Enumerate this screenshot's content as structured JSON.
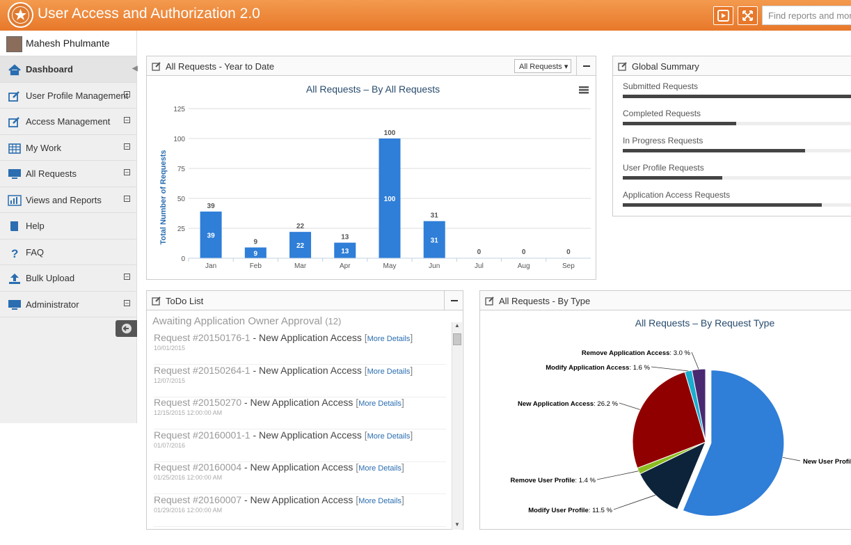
{
  "app": {
    "title": "User Access and Authorization 2.0",
    "search_placeholder": "Find reports and more"
  },
  "user": {
    "name": "Mahesh Phulmante"
  },
  "sidebar": {
    "items": [
      {
        "label": "Dashboard",
        "icon": "home-icon",
        "expandable": false,
        "active": true
      },
      {
        "label": "User Profile Management",
        "icon": "edit-icon",
        "expandable": true
      },
      {
        "label": "Access Management",
        "icon": "edit-icon",
        "expandable": true
      },
      {
        "label": "My Work",
        "icon": "table-icon",
        "expandable": true
      },
      {
        "label": "All Requests",
        "icon": "monitor-icon",
        "expandable": true
      },
      {
        "label": "Views and Reports",
        "icon": "bar-chart-icon",
        "expandable": true
      },
      {
        "label": "Help",
        "icon": "book-icon",
        "expandable": false
      },
      {
        "label": "FAQ",
        "icon": "question-icon",
        "expandable": false
      },
      {
        "label": "Bulk Upload",
        "icon": "upload-icon",
        "expandable": true
      },
      {
        "label": "Administrator",
        "icon": "monitor-icon",
        "expandable": true
      }
    ]
  },
  "panels": {
    "ytd": {
      "title": "All Requests - Year to Date",
      "filter": "All Requests"
    },
    "summary": {
      "title": "Global Summary"
    },
    "todo": {
      "title": "ToDo List",
      "subtitle": "Awaiting Application Owner Approval",
      "count": "(12)"
    },
    "bytype": {
      "title": "All Requests - By Type"
    }
  },
  "global_summary": [
    {
      "label": "Submitted Requests",
      "fraction": 1.0
    },
    {
      "label": "Completed Requests",
      "fraction": 0.48
    },
    {
      "label": "In Progress Requests",
      "fraction": 0.77
    },
    {
      "label": "User Profile Requests",
      "fraction": 0.42
    },
    {
      "label": "Application Access Requests",
      "fraction": 0.84
    }
  ],
  "todo_items": [
    {
      "id": "Request #20150176-1",
      "desc": " - New Application Access ",
      "link": "More Details",
      "date": "10/01/2015"
    },
    {
      "id": "Request #20150264-1",
      "desc": " - New Application Access ",
      "link": "More Details",
      "date": "12/07/2015"
    },
    {
      "id": "Request #20150270",
      "desc": " - New Application Access ",
      "link": "More Details",
      "date": "12/15/2015 12:00:00 AM"
    },
    {
      "id": "Request #20160001-1",
      "desc": " - New Application Access ",
      "link": "More Details",
      "date": "01/07/2016"
    },
    {
      "id": "Request #20160004",
      "desc": " - New Application Access ",
      "link": "More Details",
      "date": "01/25/2016 12:00:00 AM"
    },
    {
      "id": "Request #20160007",
      "desc": " - New Application Access ",
      "link": "More Details",
      "date": "01/29/2016 12:00:00 AM"
    }
  ],
  "chart_data": [
    {
      "type": "bar",
      "title": "All Requests – By All Requests",
      "xlabel": "",
      "ylabel": "Total Number of Requests",
      "categories": [
        "Jan",
        "Feb",
        "Mar",
        "Apr",
        "May",
        "Jun",
        "Jul",
        "Aug",
        "Sep"
      ],
      "values": [
        39,
        9,
        22,
        13,
        100,
        31,
        0,
        0,
        0
      ],
      "ylim": [
        0,
        125
      ],
      "yticks": [
        0,
        25,
        50,
        75,
        100,
        125
      ],
      "grid": true,
      "color": "#2f7ed8"
    },
    {
      "type": "pie",
      "title": "All Requests – By Request Type",
      "slices": [
        {
          "label": "New User Profile",
          "value": 56.3,
          "display": "",
          "color": "#2f7ed8"
        },
        {
          "label": "Modify User Profile",
          "value": 11.5,
          "display": "11.5 %",
          "color": "#0d233a"
        },
        {
          "label": "Remove User Profile",
          "value": 1.4,
          "display": "1.4 %",
          "color": "#8bbc21"
        },
        {
          "label": "New Application Access",
          "value": 26.2,
          "display": "26.2 %",
          "color": "#910000"
        },
        {
          "label": "Modify Application Access",
          "value": 1.6,
          "display": "1.6 %",
          "color": "#1aadce"
        },
        {
          "label": "Remove Application Access",
          "value": 3.0,
          "display": "3.0 %",
          "color": "#492970"
        }
      ]
    }
  ]
}
